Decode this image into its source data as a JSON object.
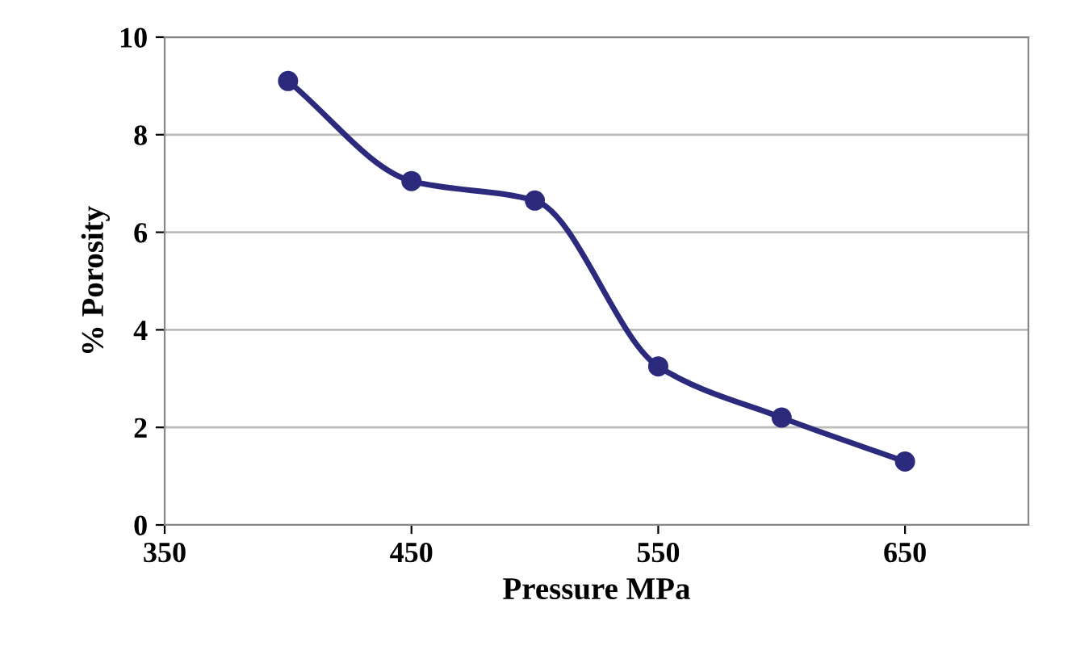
{
  "chart_data": {
    "type": "line",
    "xlabel": "Pressure MPa",
    "ylabel": "% Porosity",
    "x": [
      400,
      450,
      500,
      550,
      600,
      650
    ],
    "series": [
      {
        "color": "#2b2a7c",
        "values": [
          9.1,
          7.05,
          6.65,
          3.25,
          2.2,
          1.3
        ]
      }
    ],
    "xlim": [
      350,
      700
    ],
    "xticks": [
      350,
      450,
      550,
      650
    ],
    "ylim": [
      0,
      10
    ],
    "yticks": [
      0,
      2,
      4,
      6,
      8,
      10
    ],
    "grid": "y",
    "marker": "circle",
    "line_style": "solid"
  }
}
